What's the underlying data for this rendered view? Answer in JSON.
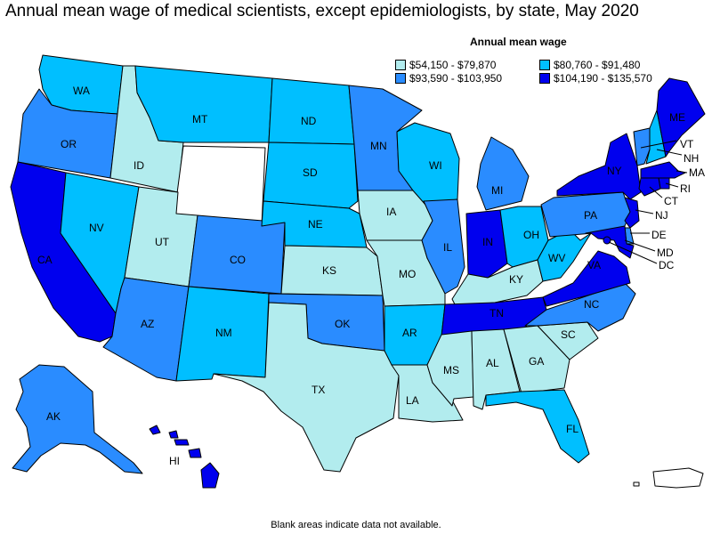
{
  "title": "Annual mean wage of medical scientists, except epidemiologists, by state, May 2020",
  "legend": {
    "title": "Annual mean wage",
    "items": [
      {
        "label": "$54,150 - $79,870",
        "color": "#b2ecee"
      },
      {
        "label": "$80,760 - $91,480",
        "color": "#00bfff"
      },
      {
        "label": "$93,590 - $103,950",
        "color": "#2a8cff"
      },
      {
        "label": "$104,190 - $135,570",
        "color": "#0000ee"
      }
    ],
    "no_data_color": "#ffffff"
  },
  "footnote": "Blank areas indicate data not available.",
  "states": {
    "WA": {
      "label": "WA",
      "bin": 1
    },
    "OR": {
      "label": "OR",
      "bin": 2
    },
    "CA": {
      "label": "CA",
      "bin": 3
    },
    "ID": {
      "label": "ID",
      "bin": 0
    },
    "NV": {
      "label": "NV",
      "bin": 1
    },
    "MT": {
      "label": "MT",
      "bin": 1
    },
    "WY": {
      "label": "",
      "bin": -1
    },
    "UT": {
      "label": "UT",
      "bin": 0
    },
    "AZ": {
      "label": "AZ",
      "bin": 2
    },
    "CO": {
      "label": "CO",
      "bin": 2
    },
    "NM": {
      "label": "NM",
      "bin": 1
    },
    "ND": {
      "label": "ND",
      "bin": 1
    },
    "SD": {
      "label": "SD",
      "bin": 1
    },
    "NE": {
      "label": "NE",
      "bin": 1
    },
    "KS": {
      "label": "KS",
      "bin": 0
    },
    "OK": {
      "label": "OK",
      "bin": 2
    },
    "TX": {
      "label": "TX",
      "bin": 0
    },
    "MN": {
      "label": "MN",
      "bin": 2
    },
    "IA": {
      "label": "IA",
      "bin": 0
    },
    "MO": {
      "label": "MO",
      "bin": 0
    },
    "AR": {
      "label": "AR",
      "bin": 1
    },
    "LA": {
      "label": "LA",
      "bin": 0
    },
    "WI": {
      "label": "WI",
      "bin": 1
    },
    "IL": {
      "label": "IL",
      "bin": 2
    },
    "MI": {
      "label": "MI",
      "bin": 2
    },
    "IN": {
      "label": "IN",
      "bin": 3
    },
    "OH": {
      "label": "OH",
      "bin": 1
    },
    "KY": {
      "label": "KY",
      "bin": 0
    },
    "TN": {
      "label": "TN",
      "bin": 3
    },
    "MS": {
      "label": "MS",
      "bin": 0
    },
    "AL": {
      "label": "AL",
      "bin": 0
    },
    "GA": {
      "label": "GA",
      "bin": 0
    },
    "FL": {
      "label": "FL",
      "bin": 1
    },
    "SC": {
      "label": "SC",
      "bin": 0
    },
    "NC": {
      "label": "NC",
      "bin": 2
    },
    "VA": {
      "label": "VA",
      "bin": 3
    },
    "WV": {
      "label": "WV",
      "bin": 1
    },
    "PA": {
      "label": "PA",
      "bin": 2
    },
    "NY": {
      "label": "NY",
      "bin": 3
    },
    "VT": {
      "label": "VT",
      "bin": 2
    },
    "NH": {
      "label": "NH",
      "bin": 1
    },
    "ME": {
      "label": "ME",
      "bin": 3
    },
    "MA": {
      "label": "MA",
      "bin": 3
    },
    "RI": {
      "label": "RI",
      "bin": 3
    },
    "CT": {
      "label": "CT",
      "bin": 3
    },
    "NJ": {
      "label": "NJ",
      "bin": 3
    },
    "DE": {
      "label": "DE",
      "bin": 2
    },
    "MD": {
      "label": "MD",
      "bin": 3
    },
    "DC": {
      "label": "DC",
      "bin": 3
    },
    "AK": {
      "label": "AK",
      "bin": 2
    },
    "HI": {
      "label": "HI",
      "bin": 3
    },
    "PR": {
      "label": "",
      "bin": -1
    }
  }
}
